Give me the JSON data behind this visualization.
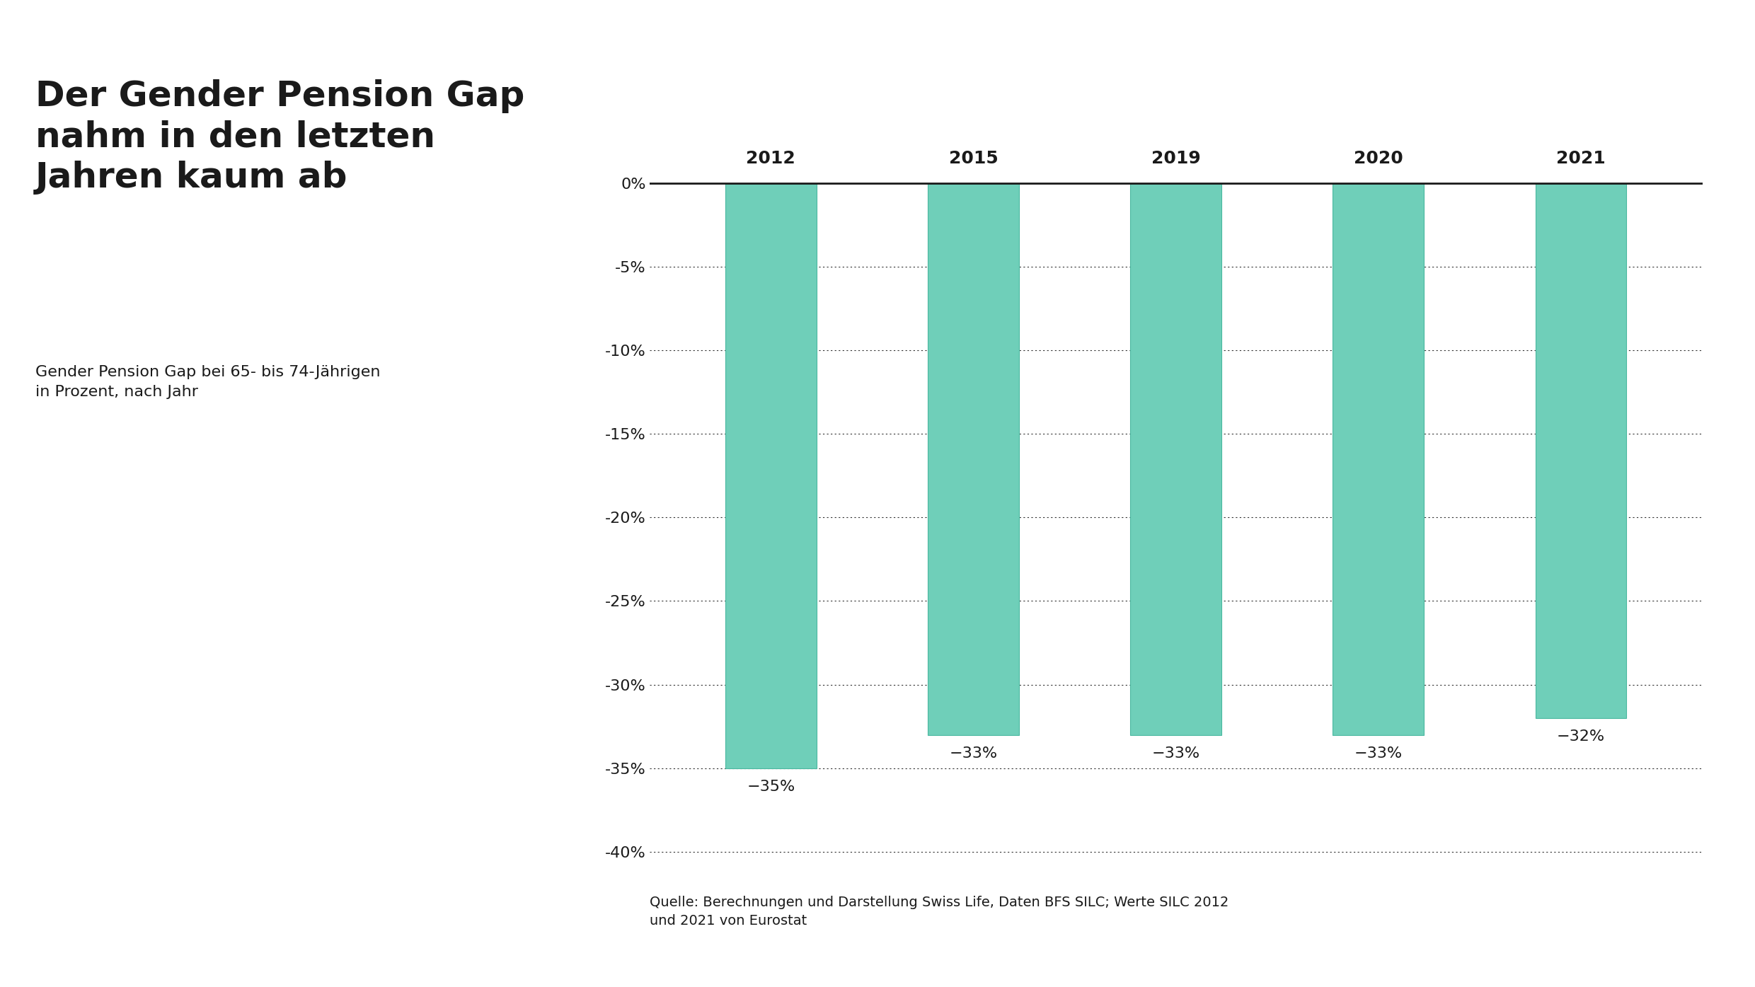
{
  "title": "Der Gender Pension Gap\nnahm in den letzten\nJahren kaum ab",
  "subtitle": "Gender Pension Gap bei 65- bis 74-Jährigen\nin Prozent, nach Jahr",
  "source": "Quelle: Berechnungen und Darstellung Swiss Life, Daten BFS SILC; Werte SILC 2012\nund 2021 von Eurostat",
  "years": [
    "2012",
    "2015",
    "2019",
    "2020",
    "2021"
  ],
  "values": [
    -35,
    -33,
    -33,
    -33,
    -32
  ],
  "bar_color": "#6fcfb9",
  "bar_edge_color": "#4ab8a0",
  "background_color": "#ffffff",
  "text_color": "#1a1a1a",
  "yticks": [
    0,
    -5,
    -10,
    -15,
    -20,
    -25,
    -30,
    -35,
    -40
  ],
  "ylim": [
    -41,
    1.5
  ],
  "zero_line_color": "#1a1a1a",
  "grid_color": "#333333",
  "title_fontsize": 36,
  "subtitle_fontsize": 16,
  "source_fontsize": 14,
  "bar_label_fontsize": 16,
  "axis_fontsize": 16,
  "year_fontsize": 18
}
